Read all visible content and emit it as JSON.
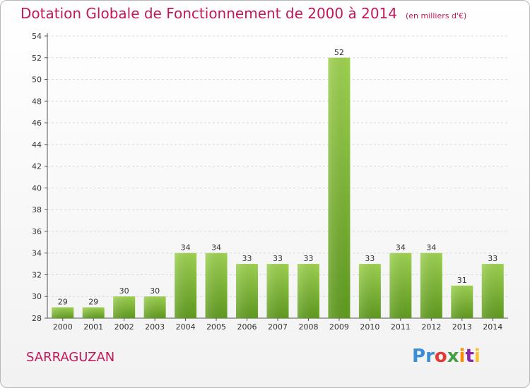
{
  "header": {
    "title": "Dotation Globale de Fonctionnement de 2000 à 2014",
    "subtitle": "(en milliers d'€)"
  },
  "footer": {
    "commune": "SARRAGUZAN",
    "logo": "Proxiti"
  },
  "colors": {
    "accent": "#c2185b",
    "bar_light": "#9ed151",
    "bar_dark": "#5f9a1f"
  },
  "chart_data": {
    "type": "bar",
    "title": "Dotation Globale de Fonctionnement de 2000 à 2014",
    "subtitle": "(en milliers d'€)",
    "xlabel": "",
    "ylabel": "",
    "categories": [
      "2000",
      "2001",
      "2002",
      "2003",
      "2004",
      "2005",
      "2006",
      "2007",
      "2008",
      "2009",
      "2010",
      "2011",
      "2012",
      "2013",
      "2014"
    ],
    "values": [
      29,
      29,
      30,
      30,
      34,
      34,
      33,
      33,
      33,
      52,
      33,
      34,
      34,
      31,
      33
    ],
    "ylim": [
      28,
      54
    ],
    "yticks": [
      28,
      30,
      32,
      34,
      36,
      38,
      40,
      42,
      44,
      46,
      48,
      50,
      52,
      54
    ],
    "grid": true,
    "data_labels": true
  }
}
